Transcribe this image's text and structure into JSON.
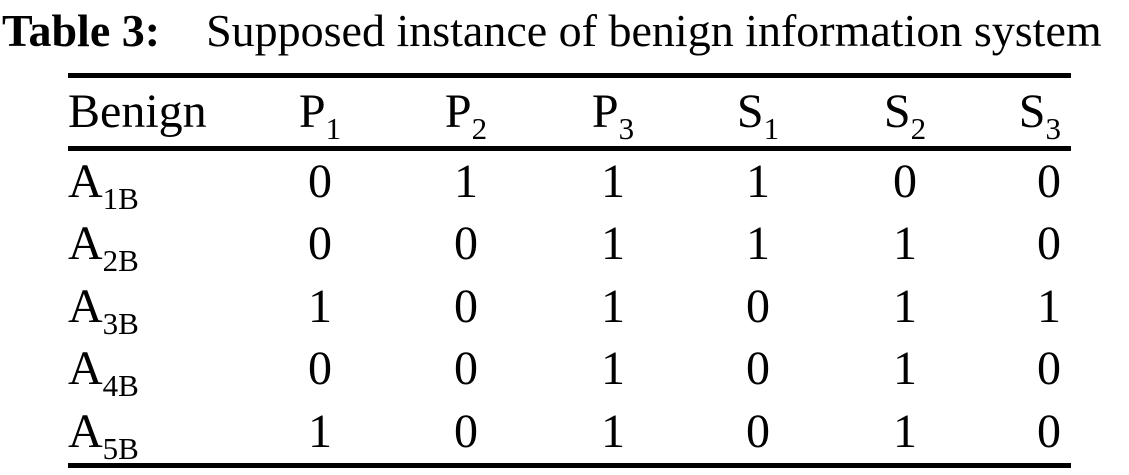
{
  "title": {
    "label": "Table 3:",
    "caption": "Supposed instance of benign information system"
  },
  "table": {
    "header": [
      {
        "base": "Benign",
        "sub": ""
      },
      {
        "base": "P",
        "sub": "1"
      },
      {
        "base": "P",
        "sub": "2"
      },
      {
        "base": "P",
        "sub": "3"
      },
      {
        "base": "S",
        "sub": "1"
      },
      {
        "base": "S",
        "sub": "2"
      },
      {
        "base": "S",
        "sub": "3"
      }
    ],
    "rows": [
      {
        "label_base": "A",
        "label_sub": "1B",
        "values": [
          "0",
          "1",
          "1",
          "1",
          "0",
          "0"
        ]
      },
      {
        "label_base": "A",
        "label_sub": "2B",
        "values": [
          "0",
          "0",
          "1",
          "1",
          "1",
          "0"
        ]
      },
      {
        "label_base": "A",
        "label_sub": "3B",
        "values": [
          "1",
          "0",
          "1",
          "0",
          "1",
          "1"
        ]
      },
      {
        "label_base": "A",
        "label_sub": "4B",
        "values": [
          "0",
          "0",
          "1",
          "0",
          "1",
          "0"
        ]
      },
      {
        "label_base": "A",
        "label_sub": "5B",
        "values": [
          "1",
          "0",
          "1",
          "0",
          "1",
          "0"
        ]
      }
    ]
  },
  "colors": {
    "text": "#000000",
    "background": "#ffffff",
    "rule": "#000000"
  },
  "chart_data": {
    "type": "table",
    "title": "Table 3: Supposed instance of benign information system",
    "columns": [
      "Benign",
      "P1",
      "P2",
      "P3",
      "S1",
      "S2",
      "S3"
    ],
    "rows": [
      [
        "A1B",
        0,
        1,
        1,
        1,
        0,
        0
      ],
      [
        "A2B",
        0,
        0,
        1,
        1,
        1,
        0
      ],
      [
        "A3B",
        1,
        0,
        1,
        0,
        1,
        1
      ],
      [
        "A4B",
        0,
        0,
        1,
        0,
        1,
        0
      ],
      [
        "A5B",
        1,
        0,
        1,
        0,
        1,
        0
      ]
    ]
  }
}
